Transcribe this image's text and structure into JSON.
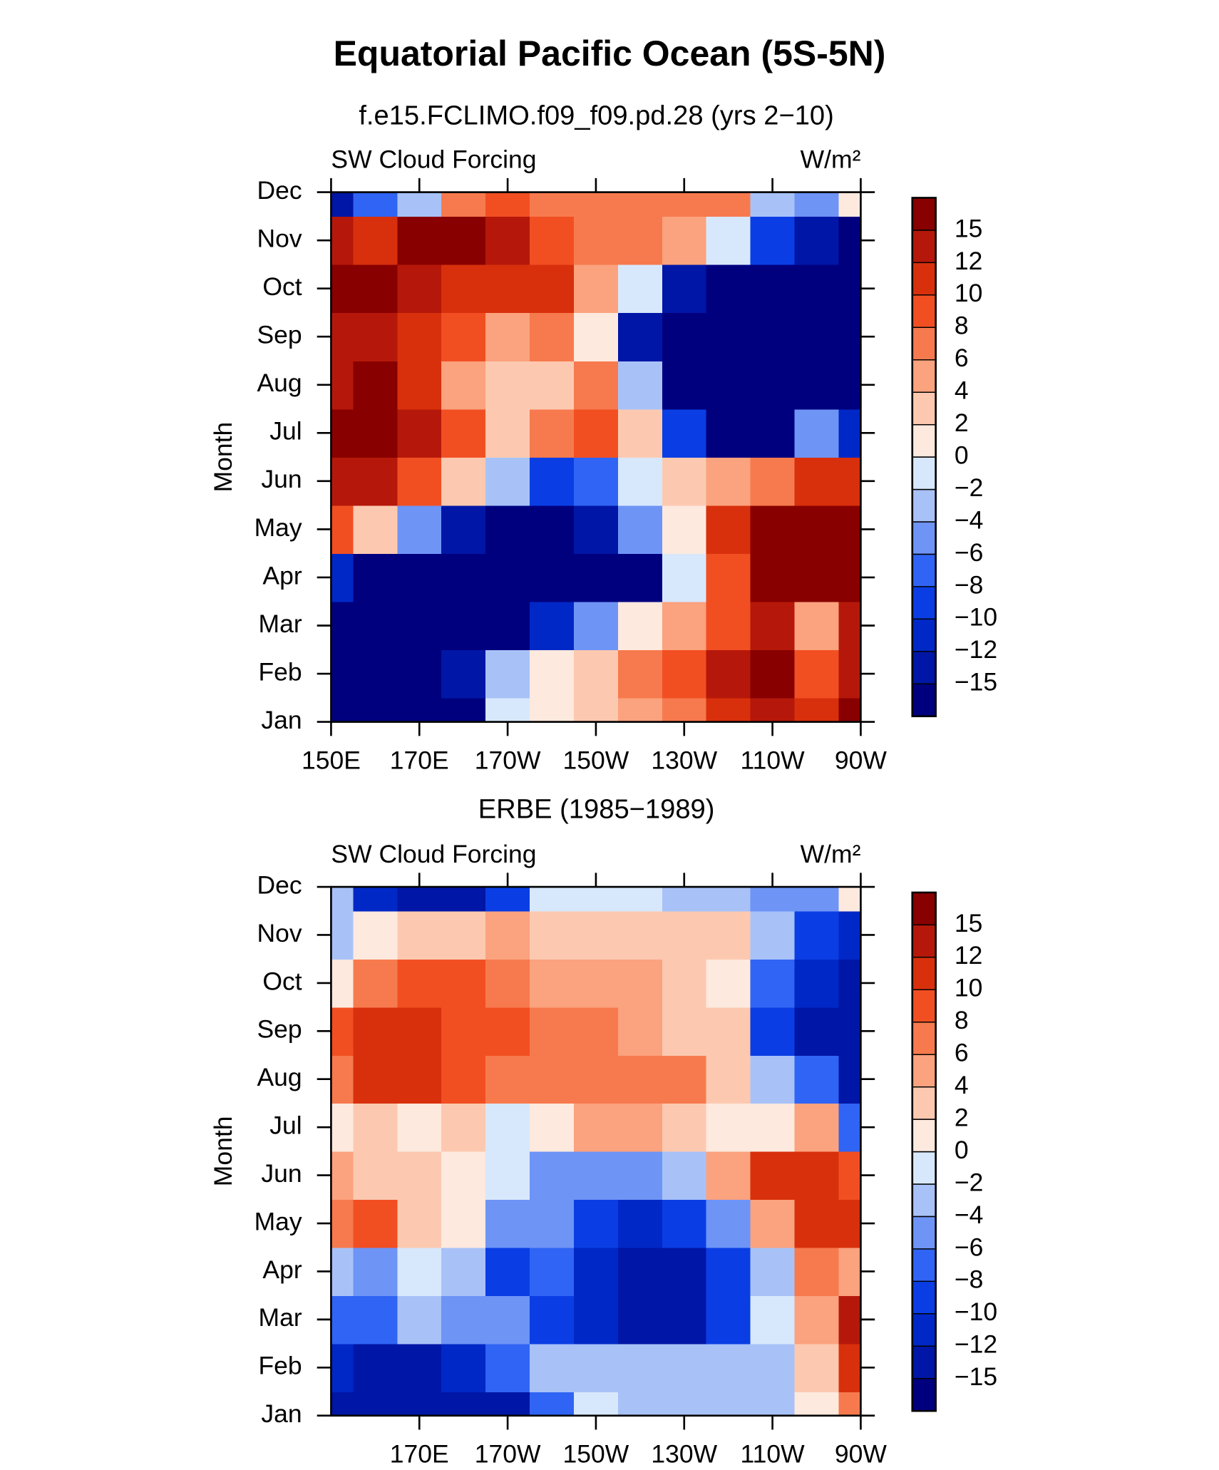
{
  "title": "Equatorial Pacific Ocean (5S-5N)",
  "chart_data": [
    {
      "type": "contour",
      "subtitle": "f.e15.FCLIMO.f09_f09.pd.28 (yrs 2−10)",
      "left_label": "SW Cloud Forcing",
      "right_label": "W/m²",
      "ylabel": "Month",
      "categories": [
        "Jan",
        "Feb",
        "Mar",
        "Apr",
        "May",
        "Jun",
        "Jul",
        "Aug",
        "Sep",
        "Oct",
        "Nov",
        "Dec"
      ],
      "x": [
        150,
        160,
        170,
        180,
        190,
        200,
        210,
        220,
        230,
        240,
        250,
        260,
        270
      ],
      "xlim": [
        150,
        270
      ],
      "xticks": [
        {
          "value": 150,
          "label": "150E"
        },
        {
          "value": 170,
          "label": "170E"
        },
        {
          "value": 190,
          "label": "170W"
        },
        {
          "value": 210,
          "label": "150W"
        },
        {
          "value": 230,
          "label": "130W"
        },
        {
          "value": 250,
          "label": "110W"
        },
        {
          "value": 270,
          "label": "90W"
        }
      ],
      "values": [
        [
          -18,
          -18,
          -18,
          -16,
          0,
          2,
          3,
          5,
          8,
          11,
          13,
          12,
          16
        ],
        [
          -18,
          -18,
          -18,
          -14,
          -3,
          2,
          4,
          7,
          10,
          14,
          16,
          10,
          15
        ],
        [
          -18,
          -18,
          -18,
          -18,
          -16,
          -10,
          -4,
          2,
          6,
          10,
          14,
          6,
          14
        ],
        [
          -10,
          -16,
          -18,
          -18,
          -18,
          -18,
          -18,
          -15,
          0,
          10,
          16,
          16,
          16
        ],
        [
          10,
          4,
          -4,
          -14,
          -18,
          -18,
          -12,
          -4,
          2,
          12,
          16,
          16,
          16
        ],
        [
          15,
          13,
          10,
          4,
          -2,
          -8,
          -6,
          0,
          3,
          5,
          8,
          12,
          12
        ],
        [
          16,
          16,
          15,
          10,
          4,
          8,
          9,
          3,
          -8,
          -18,
          -18,
          -4,
          -10
        ],
        [
          13,
          16,
          12,
          6,
          3,
          4,
          8,
          -2,
          -16,
          -18,
          -18,
          -18,
          -18
        ],
        [
          15,
          13,
          11,
          9,
          5,
          7,
          2,
          -14,
          -18,
          -18,
          -18,
          -18,
          -18
        ],
        [
          16,
          16,
          13,
          12,
          11,
          11,
          6,
          0,
          -12,
          -18,
          -18,
          -18,
          -18
        ],
        [
          13,
          12,
          16,
          16,
          13,
          10,
          8,
          8,
          6,
          0,
          -8,
          -12,
          -15
        ],
        [
          -14,
          -6,
          -2,
          8,
          10,
          8,
          8,
          8,
          8,
          8,
          -2,
          -4,
          2
        ]
      ],
      "levels": [
        {
          "value": -15,
          "label": "−15"
        },
        {
          "value": -12,
          "label": "−12"
        },
        {
          "value": -10,
          "label": "−10"
        },
        {
          "value": -8,
          "label": "−8"
        },
        {
          "value": -6,
          "label": "−6"
        },
        {
          "value": -4,
          "label": "−4"
        },
        {
          "value": -2,
          "label": "−2"
        },
        0,
        2,
        4,
        6,
        8,
        10,
        12,
        15
      ],
      "colors": [
        "#00007f",
        "#0016a6",
        "#0028c6",
        "#0a3ee4",
        "#3064f4",
        "#6e94f6",
        "#a8c2f8",
        "#d8e8fc",
        "#fde9de",
        "#fcc9b0",
        "#fba27e",
        "#f77a4e",
        "#f14f22",
        "#d8300c",
        "#b5180a",
        "#880000"
      ]
    },
    {
      "type": "contour",
      "subtitle": "ERBE (1985−1989)",
      "left_label": "SW Cloud Forcing",
      "right_label": "W/m²",
      "ylabel": "Month",
      "categories": [
        "Jan",
        "Feb",
        "Mar",
        "Apr",
        "May",
        "Jun",
        "Jul",
        "Aug",
        "Sep",
        "Oct",
        "Nov",
        "Dec"
      ],
      "x": [
        150,
        160,
        170,
        180,
        190,
        200,
        210,
        220,
        230,
        240,
        250,
        260,
        270
      ],
      "xlim": [
        150,
        270
      ],
      "xticks": [
        {
          "value": 170,
          "label": "170E"
        },
        {
          "value": 190,
          "label": "170W"
        },
        {
          "value": 210,
          "label": "150W"
        },
        {
          "value": 230,
          "label": "130W"
        },
        {
          "value": 250,
          "label": "110W"
        },
        {
          "value": 270,
          "label": "90W"
        }
      ],
      "values": [
        [
          -12,
          -12,
          -14,
          -14,
          -12,
          -6,
          0,
          -2,
          -2,
          -2,
          -3,
          2,
          8
        ],
        [
          -10,
          -12,
          -12,
          -10,
          -6,
          -2,
          -2,
          -3,
          -2,
          -2,
          -2,
          4,
          12
        ],
        [
          -6,
          -6,
          -3,
          -4,
          -4,
          -8,
          -10,
          -12,
          -12,
          -8,
          0,
          6,
          14
        ],
        [
          -2,
          -4,
          0,
          -2,
          -8,
          -6,
          -10,
          -13,
          -12,
          -9,
          -2,
          8,
          6
        ],
        [
          8,
          10,
          4,
          2,
          -4,
          -4,
          -8,
          -10,
          -8,
          -4,
          6,
          12,
          12
        ],
        [
          6,
          4,
          4,
          2,
          0,
          -4,
          -5,
          -4,
          -2,
          6,
          12,
          12,
          10
        ],
        [
          2,
          3,
          2,
          4,
          0,
          2,
          6,
          6,
          4,
          2,
          2,
          6,
          -6
        ],
        [
          8,
          12,
          12,
          10,
          8,
          8,
          8,
          8,
          7,
          4,
          -2,
          -6,
          -12
        ],
        [
          10,
          12,
          12,
          9,
          10,
          8,
          8,
          6,
          4,
          4,
          -8,
          -14,
          -14
        ],
        [
          2,
          8,
          10,
          10,
          8,
          6,
          6,
          6,
          4,
          2,
          -6,
          -10,
          -12
        ],
        [
          -2,
          2,
          3,
          4,
          6,
          4,
          4,
          4,
          4,
          4,
          -2,
          -8,
          -10
        ],
        [
          -3,
          -10,
          -14,
          -14,
          -8,
          0,
          0,
          0,
          -2,
          -3,
          -4,
          -4,
          2
        ]
      ],
      "levels": [
        {
          "value": -15,
          "label": "−15"
        },
        {
          "value": -12,
          "label": "−12"
        },
        {
          "value": -10,
          "label": "−10"
        },
        {
          "value": -8,
          "label": "−8"
        },
        {
          "value": -6,
          "label": "−6"
        },
        {
          "value": -4,
          "label": "−4"
        },
        {
          "value": -2,
          "label": "−2"
        },
        0,
        2,
        4,
        6,
        8,
        10,
        12,
        15
      ],
      "colors": [
        "#00007f",
        "#0016a6",
        "#0028c6",
        "#0a3ee4",
        "#3064f4",
        "#6e94f6",
        "#a8c2f8",
        "#d8e8fc",
        "#fde9de",
        "#fcc9b0",
        "#fba27e",
        "#f77a4e",
        "#f14f22",
        "#d8300c",
        "#b5180a",
        "#880000"
      ]
    }
  ]
}
